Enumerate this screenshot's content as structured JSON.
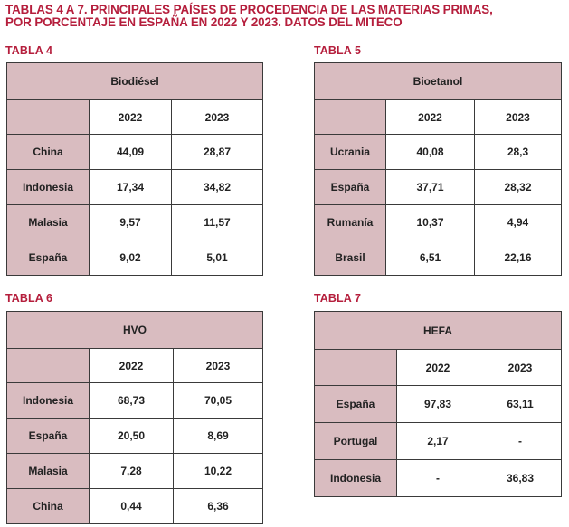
{
  "title": {
    "line1": "TABLAS 4 A 7. PRINCIPALES PAÍSES DE PROCEDENCIA DE LAS MATERIAS PRIMAS,",
    "line2": "POR PORCENTAJE EN ESPAÑA EN 2022 Y 2023. DATOS DEL MITECO"
  },
  "colors": {
    "accent": "#b51e3c",
    "cell_fill": "#d9bcc0",
    "border": "#3a3a3a"
  },
  "tables": [
    {
      "label": "TABLA 4",
      "header": "Biodiésel",
      "years": [
        "2022",
        "2023"
      ],
      "rows": [
        {
          "country": "China",
          "v2022": "44,09",
          "v2023": "28,87"
        },
        {
          "country": "Indonesia",
          "v2022": "17,34",
          "v2023": "34,82"
        },
        {
          "country": "Malasia",
          "v2022": "9,57",
          "v2023": "11,57"
        },
        {
          "country": "España",
          "v2022": "9,02",
          "v2023": "5,01"
        }
      ]
    },
    {
      "label": "TABLA 5",
      "header": "Bioetanol",
      "years": [
        "2022",
        "2023"
      ],
      "rows": [
        {
          "country": "Ucrania",
          "v2022": "40,08",
          "v2023": "28,3"
        },
        {
          "country": "España",
          "v2022": "37,71",
          "v2023": "28,32"
        },
        {
          "country": "Rumanía",
          "v2022": "10,37",
          "v2023": "4,94"
        },
        {
          "country": "Brasil",
          "v2022": "6,51",
          "v2023": "22,16"
        }
      ]
    },
    {
      "label": "TABLA 6",
      "header": "HVO",
      "years": [
        "2022",
        "2023"
      ],
      "rows": [
        {
          "country": "Indonesia",
          "v2022": "68,73",
          "v2023": "70,05"
        },
        {
          "country": "España",
          "v2022": "20,50",
          "v2023": "8,69"
        },
        {
          "country": "Malasia",
          "v2022": "7,28",
          "v2023": "10,22"
        },
        {
          "country": "China",
          "v2022": "0,44",
          "v2023": "6,36"
        }
      ]
    },
    {
      "label": "TABLA 7",
      "header": "HEFA",
      "years": [
        "2022",
        "2023"
      ],
      "rows": [
        {
          "country": "España",
          "v2022": "97,83",
          "v2023": "63,11"
        },
        {
          "country": "Portugal",
          "v2022": "2,17",
          "v2023": "-"
        },
        {
          "country": "Indonesia",
          "v2022": "-",
          "v2023": "36,83"
        }
      ]
    }
  ]
}
